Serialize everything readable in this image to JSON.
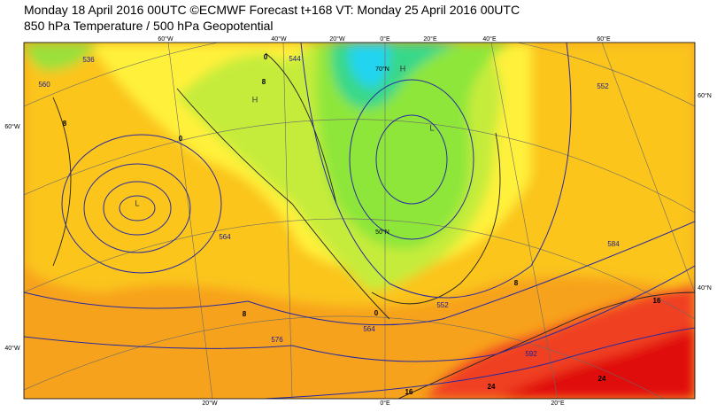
{
  "header": {
    "line1": "Monday 18 April 2016 00UTC ©ECMWF Forecast t+168 VT: Monday 25 April 2016 00UTC",
    "line2": "850 hPa Temperature / 500 hPa Geopotential"
  },
  "map": {
    "top_labels": [
      "60°W",
      "40°W",
      "20°W",
      "0°E",
      "20°E",
      "40°E",
      "60°E"
    ],
    "left_labels": [
      "60°W",
      "40°W"
    ],
    "right_labels": [
      "60°N",
      "40°N"
    ],
    "bottom_labels": [
      "20°W",
      "0°E",
      "20°E"
    ],
    "inner_labels": [
      "70°N",
      "50°N"
    ],
    "temperature_labels": [
      "8",
      "0",
      "8",
      "8",
      "0",
      "16",
      "24",
      "16",
      "24",
      "8",
      "0"
    ],
    "geopotential_labels": [
      "536",
      "564",
      "576",
      "564",
      "552",
      "584",
      "592",
      "552",
      "544",
      "560"
    ],
    "pressure_centres": [
      "L",
      "H",
      "H",
      "L"
    ]
  }
}
